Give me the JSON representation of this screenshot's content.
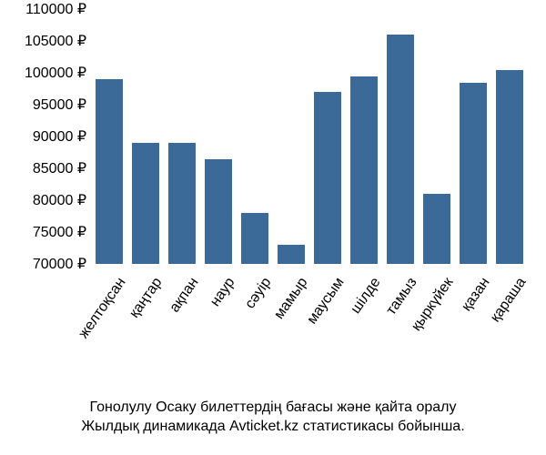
{
  "chart": {
    "type": "bar",
    "background_color": "#ffffff",
    "bar_color": "#3b6998",
    "text_color": "#000000",
    "label_fontsize": 16,
    "caption_fontsize": 16,
    "y_axis": {
      "min": 70000,
      "max": 110000,
      "tick_step": 5000,
      "suffix": " ₽",
      "ticks": [
        {
          "v": 110000,
          "label": "110000 ₽"
        },
        {
          "v": 105000,
          "label": "105000 ₽"
        },
        {
          "v": 100000,
          "label": "100000 ₽"
        },
        {
          "v": 95000,
          "label": "95000 ₽"
        },
        {
          "v": 90000,
          "label": "90000 ₽"
        },
        {
          "v": 85000,
          "label": "85000 ₽"
        },
        {
          "v": 80000,
          "label": "80000 ₽"
        },
        {
          "v": 75000,
          "label": "75000 ₽"
        },
        {
          "v": 70000,
          "label": "70000 ₽"
        }
      ]
    },
    "series": [
      {
        "label": "желтоқсан",
        "value": 99000
      },
      {
        "label": "қаңтар",
        "value": 89000
      },
      {
        "label": "ақпан",
        "value": 89000
      },
      {
        "label": "наур",
        "value": 86500
      },
      {
        "label": "сәуір",
        "value": 78000
      },
      {
        "label": "мамыр",
        "value": 73000
      },
      {
        "label": "маусым",
        "value": 97000
      },
      {
        "label": "шілде",
        "value": 99500
      },
      {
        "label": "тамыз",
        "value": 106000
      },
      {
        "label": "қыркүйек",
        "value": 81000
      },
      {
        "label": "қазан",
        "value": 98500
      },
      {
        "label": "қараша",
        "value": 100500
      }
    ],
    "caption_line1": "Гонолулу Осаку билеттердің бағасы және қайта оралу",
    "caption_line2": "Жылдық динамикада Avticket.kz статистикасы бойынша."
  }
}
